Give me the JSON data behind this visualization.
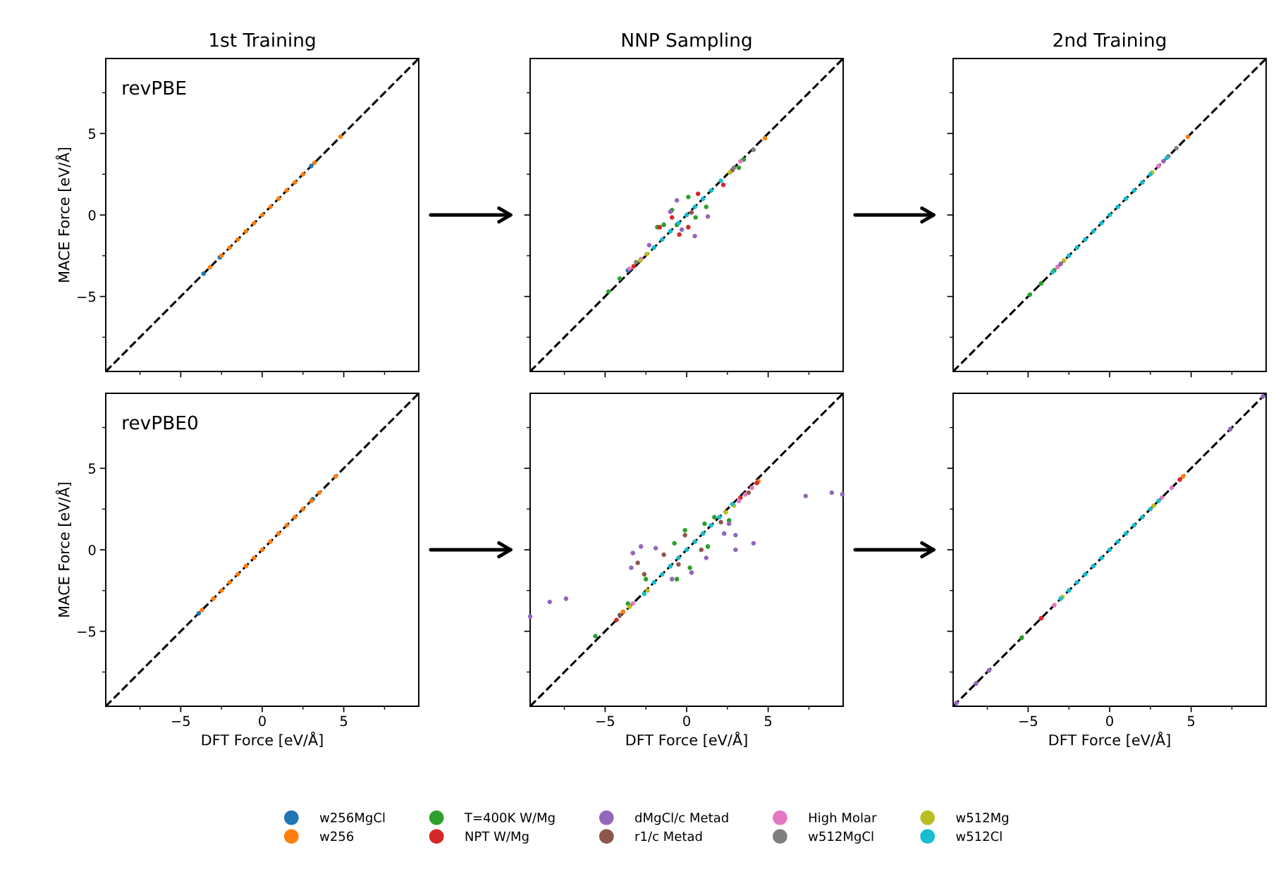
{
  "chart_data": [
    {
      "type": "scatter",
      "title": "1st Training",
      "ylabel": "MACE Force [eV/Å]",
      "annotations": [
        "revPBE"
      ],
      "marker": "circle",
      "tick_labels": "y",
      "xlim": [
        -9.6,
        9.6
      ],
      "ylim": [
        -9.6,
        9.6
      ],
      "xticks": [
        {
          "value": -7.5,
          "label": null
        },
        {
          "value": -5,
          "label": null
        },
        {
          "value": -2.5,
          "label": null
        },
        {
          "value": 0,
          "label": null
        },
        {
          "value": 2.5,
          "label": null
        },
        {
          "value": 5,
          "label": null
        },
        {
          "value": 7.5,
          "label": null
        }
      ],
      "yticks": [
        {
          "value": -7.5,
          "label": null
        },
        {
          "value": -5,
          "label": "−5"
        },
        {
          "value": -2.5,
          "label": null
        },
        0,
        {
          "value": 2.5,
          "label": null
        },
        5,
        {
          "value": 7.5,
          "label": null
        }
      ],
      "series": [
        {
          "type": "line",
          "marker": "none",
          "line_style": "dashed",
          "color": "#000000",
          "x": [
            -9.6,
            9.6
          ],
          "values": [
            -9.6,
            9.6
          ]
        },
        {
          "color": "#1f77b4",
          "x": [
            -3.6,
            -2.6,
            3.0
          ],
          "values": [
            -3.6,
            -2.6,
            3.0
          ]
        },
        {
          "color": "#ff7f0e",
          "x": [
            -3.2,
            -2.5,
            -2.0,
            -1.5,
            -1.0,
            -0.5,
            0.0,
            0.5,
            1.0,
            1.5,
            2.0,
            2.5,
            3.2,
            4.8
          ],
          "values": [
            -3.2,
            -2.5,
            -2.0,
            -1.5,
            -1.0,
            -0.5,
            0.0,
            0.5,
            1.0,
            1.5,
            2.0,
            2.5,
            3.2,
            4.8
          ]
        }
      ]
    },
    {
      "type": "scatter",
      "title": "NNP Sampling",
      "marker": "circle",
      "tick_labels": false,
      "legend": "bottom",
      "xlim": [
        -9.6,
        9.6
      ],
      "ylim": [
        -9.6,
        9.6
      ],
      "xticks": [
        {
          "value": -7.5,
          "label": null
        },
        {
          "value": -5,
          "label": null
        },
        {
          "value": -2.5,
          "label": null
        },
        {
          "value": 0,
          "label": null
        },
        {
          "value": 2.5,
          "label": null
        },
        {
          "value": 5,
          "label": null
        },
        {
          "value": 7.5,
          "label": null
        }
      ],
      "yticks": [
        {
          "value": -7.5,
          "label": null
        },
        {
          "value": -5,
          "label": null
        },
        {
          "value": -2.5,
          "label": null
        },
        {
          "value": 0,
          "label": null
        },
        {
          "value": 2.5,
          "label": null
        },
        {
          "value": 5,
          "label": null
        },
        {
          "value": 7.5,
          "label": null
        }
      ],
      "series": [
        {
          "type": "line",
          "marker": "none",
          "line_style": "dashed",
          "color": "#000000",
          "x": [
            -9.6,
            9.6
          ],
          "values": [
            -9.6,
            9.6
          ]
        },
        {
          "name": "w256MgCl",
          "color": "#1f77b4",
          "x": [
            -3.6
          ],
          "values": [
            -3.4
          ]
        },
        {
          "name": "w256",
          "color": "#ff7f0e",
          "x": [
            4.8
          ],
          "values": [
            4.7
          ]
        },
        {
          "name": "T=400K W/Mg",
          "color": "#2ca02c",
          "x": [
            -4.8,
            -4.1,
            3.5,
            0.1,
            -1.8,
            -1.4,
            -0.9,
            1.2,
            0.55,
            -0.6,
            3.2
          ],
          "values": [
            -4.7,
            -3.9,
            3.4,
            1.1,
            -0.75,
            -0.6,
            0.3,
            0.5,
            -0.15,
            -0.6,
            2.9
          ]
        },
        {
          "name": "NPT W/Mg",
          "color": "#d62728",
          "x": [
            -3.25,
            -1.65,
            -0.45,
            0.7,
            0.1,
            2.25,
            -0.9
          ],
          "values": [
            -3.15,
            -0.75,
            -1.2,
            1.3,
            -0.75,
            1.85,
            -0.15
          ]
        },
        {
          "name": "dMgCl/c Metad",
          "color": "#9467bd",
          "x": [
            -0.6,
            0.5,
            1.3,
            -1.0,
            -2.3,
            -0.3
          ],
          "values": [
            0.9,
            -1.3,
            -0.1,
            0.2,
            -1.85,
            -0.9
          ]
        },
        {
          "name": "r1/c Metad",
          "color": "#8c564b",
          "x": [
            2.8,
            0.3
          ],
          "values": [
            2.75,
            0.15
          ]
        },
        {
          "name": "High Molar",
          "color": "#e377c2",
          "x": [
            -3.5,
            3.3,
            -2.8
          ],
          "values": [
            -3.3,
            3.3,
            -2.7
          ]
        },
        {
          "name": "w512MgCl",
          "color": "#7f7f7f",
          "x": [
            4.1,
            -3.1,
            2.9
          ],
          "values": [
            4.0,
            -2.9,
            2.9
          ]
        },
        {
          "name": "w512Mg",
          "color": "#bcbd22",
          "x": [
            -2.85,
            2.65,
            -2.45
          ],
          "values": [
            -2.8,
            2.6,
            -2.4
          ]
        },
        {
          "name": "w512Cl",
          "color": "#17becf",
          "x": [
            -2.0,
            -1.5,
            -1.0,
            -0.5,
            0.0,
            0.5,
            1.0,
            1.5,
            2.1
          ],
          "values": [
            -2.0,
            -1.5,
            -1.0,
            -0.5,
            0.0,
            0.5,
            1.0,
            1.5,
            2.1
          ]
        }
      ]
    },
    {
      "type": "scatter",
      "title": "2nd Training",
      "marker": "circle",
      "tick_labels": false,
      "xlim": [
        -9.6,
        9.6
      ],
      "ylim": [
        -9.6,
        9.6
      ],
      "xticks": [
        {
          "value": -7.5,
          "label": null
        },
        {
          "value": -5,
          "label": null
        },
        {
          "value": -2.5,
          "label": null
        },
        {
          "value": 0,
          "label": null
        },
        {
          "value": 2.5,
          "label": null
        },
        {
          "value": 5,
          "label": null
        },
        {
          "value": 7.5,
          "label": null
        }
      ],
      "yticks": [
        {
          "value": -7.5,
          "label": null
        },
        {
          "value": -5,
          "label": null
        },
        {
          "value": -2.5,
          "label": null
        },
        {
          "value": 0,
          "label": null
        },
        {
          "value": 2.5,
          "label": null
        },
        {
          "value": 5,
          "label": null
        },
        {
          "value": 7.5,
          "label": null
        }
      ],
      "series": [
        {
          "type": "line",
          "marker": "none",
          "line_style": "dashed",
          "color": "#000000",
          "x": [
            -9.6,
            9.6
          ],
          "values": [
            -9.6,
            9.6
          ]
        },
        {
          "color": "#ff7f0e",
          "x": [
            4.8
          ],
          "values": [
            4.8
          ]
        },
        {
          "color": "#2ca02c",
          "x": [
            -4.9,
            -4.2,
            -3.4
          ],
          "values": [
            -4.9,
            -4.2,
            -3.4
          ]
        },
        {
          "color": "#9467bd",
          "x": [
            -3.0,
            3.3
          ],
          "values": [
            -3.0,
            3.3
          ]
        },
        {
          "color": "#e377c2",
          "x": [
            -3.2,
            3.0
          ],
          "values": [
            -3.2,
            3.0
          ]
        },
        {
          "color": "#7f7f7f",
          "x": [
            4.1,
            3.6
          ],
          "values": [
            4.1,
            3.6
          ]
        },
        {
          "color": "#bcbd22",
          "x": [
            -2.8,
            2.6
          ],
          "values": [
            -2.8,
            2.6
          ]
        },
        {
          "color": "#17becf",
          "x": [
            -3.5,
            -2.5,
            -2.0,
            -1.5,
            -1.0,
            -0.5,
            0.0,
            0.5,
            1.0,
            1.5,
            2.0,
            2.5,
            3.5
          ],
          "values": [
            -3.5,
            -2.5,
            -2.0,
            -1.5,
            -1.0,
            -0.5,
            0.0,
            0.5,
            1.0,
            1.5,
            2.0,
            2.5,
            3.5
          ]
        }
      ]
    },
    {
      "type": "scatter",
      "xlabel": "DFT Force [eV/Å]",
      "ylabel": "MACE Force [eV/Å]",
      "annotations": [
        "revPBE0"
      ],
      "marker": "circle",
      "xlim": [
        -9.6,
        9.6
      ],
      "ylim": [
        -9.6,
        9.6
      ],
      "xticks": [
        {
          "value": -7.5,
          "label": null
        },
        {
          "value": -5,
          "label": "−5"
        },
        {
          "value": -2.5,
          "label": null
        },
        0,
        {
          "value": 2.5,
          "label": null
        },
        5,
        {
          "value": 7.5,
          "label": null
        }
      ],
      "yticks": [
        {
          "value": -7.5,
          "label": null
        },
        {
          "value": -5,
          "label": "−5"
        },
        {
          "value": -2.5,
          "label": null
        },
        0,
        {
          "value": 2.5,
          "label": null
        },
        5,
        {
          "value": 7.5,
          "label": null
        }
      ],
      "series": [
        {
          "type": "line",
          "marker": "none",
          "line_style": "dashed",
          "color": "#000000",
          "x": [
            -9.6,
            9.6
          ],
          "values": [
            -9.6,
            9.6
          ]
        },
        {
          "color": "#1f77b4",
          "x": [
            -3.9,
            3.1
          ],
          "values": [
            -3.9,
            3.1
          ]
        },
        {
          "color": "#ff7f0e",
          "x": [
            -3.7,
            -3.0,
            -2.5,
            -2.0,
            -1.5,
            -1.0,
            -0.5,
            0.0,
            0.5,
            1.0,
            1.5,
            2.0,
            2.5,
            3.0,
            3.5,
            4.5
          ],
          "values": [
            -3.7,
            -3.0,
            -2.5,
            -2.0,
            -1.5,
            -1.0,
            -0.5,
            0.0,
            0.5,
            1.0,
            1.5,
            2.0,
            2.5,
            3.0,
            3.5,
            4.5
          ]
        }
      ]
    },
    {
      "type": "scatter",
      "xlabel": "DFT Force [eV/Å]",
      "marker": "circle",
      "tick_labels": "x",
      "xlim": [
        -9.6,
        9.6
      ],
      "ylim": [
        -9.6,
        9.6
      ],
      "xticks": [
        {
          "value": -7.5,
          "label": null
        },
        {
          "value": -5,
          "label": "−5"
        },
        {
          "value": -2.5,
          "label": null
        },
        0,
        {
          "value": 2.5,
          "label": null
        },
        5,
        {
          "value": 7.5,
          "label": null
        }
      ],
      "yticks": [
        {
          "value": -7.5,
          "label": null
        },
        {
          "value": -5,
          "label": null
        },
        {
          "value": -2.5,
          "label": null
        },
        {
          "value": 0,
          "label": null
        },
        {
          "value": 2.5,
          "label": null
        },
        {
          "value": 5,
          "label": null
        },
        {
          "value": 7.5,
          "label": null
        }
      ],
      "series": [
        {
          "type": "line",
          "marker": "none",
          "line_style": "dashed",
          "color": "#000000",
          "x": [
            -9.6,
            9.6
          ],
          "values": [
            -9.6,
            9.6
          ]
        },
        {
          "color": "#ff7f0e",
          "x": [
            4.4,
            -3.9
          ],
          "values": [
            4.2,
            -3.8
          ]
        },
        {
          "color": "#2ca02c",
          "x": [
            -5.6,
            -0.6,
            1.7,
            1.1,
            1.3,
            2.6,
            -2.5,
            -3.6,
            0.2,
            -0.75,
            -0.1
          ],
          "values": [
            -5.3,
            -1.8,
            2.0,
            1.6,
            0.2,
            1.8,
            -1.8,
            -3.3,
            -1.1,
            0.4,
            1.2
          ]
        },
        {
          "color": "#d62728",
          "x": [
            -4.3,
            4.3,
            3.3
          ],
          "values": [
            -4.3,
            4.1,
            3.2
          ]
        },
        {
          "color": "#9467bd",
          "x": [
            7.3,
            8.9,
            9.55,
            -9.6,
            -8.4,
            -7.4,
            4.1,
            3.0,
            3.0,
            2.3,
            2.6,
            -2.8,
            -3.3,
            -1.9,
            -3.4,
            0.3,
            -0.9,
            1.2
          ],
          "values": [
            3.3,
            3.5,
            3.4,
            -4.1,
            -3.2,
            -3.0,
            0.4,
            0.0,
            0.9,
            1.0,
            1.6,
            0.2,
            -0.2,
            0.1,
            -1.1,
            -1.4,
            -1.8,
            -0.5
          ]
        },
        {
          "color": "#8c564b",
          "x": [
            -3.0,
            -2.6,
            -0.1,
            3.8,
            2.1,
            -1.4,
            0.9,
            -0.5,
            -4.1
          ],
          "values": [
            -0.8,
            -1.5,
            0.9,
            3.5,
            1.7,
            -0.3,
            0.0,
            -0.9,
            -4.0
          ]
        },
        {
          "color": "#e377c2",
          "x": [
            4.0,
            3.2,
            -3.3,
            3.6
          ],
          "values": [
            3.8,
            3.0,
            -3.3,
            3.4
          ]
        },
        {
          "color": "#bcbd22",
          "x": [
            -3.5,
            2.9,
            2.4,
            -2.4
          ],
          "values": [
            -3.5,
            2.7,
            2.3,
            -2.5
          ]
        },
        {
          "color": "#17becf",
          "x": [
            -2.6,
            -2.0,
            -1.5,
            -1.0,
            -0.5,
            0.0,
            0.5,
            1.0,
            1.5,
            2.0,
            2.8
          ],
          "values": [
            -2.7,
            -2.0,
            -1.5,
            -1.0,
            -0.5,
            0.0,
            0.5,
            1.0,
            1.5,
            2.0,
            2.8
          ]
        }
      ]
    },
    {
      "type": "scatter",
      "xlabel": "DFT Force [eV/Å]",
      "marker": "circle",
      "tick_labels": "x",
      "xlim": [
        -9.6,
        9.6
      ],
      "ylim": [
        -9.6,
        9.6
      ],
      "xticks": [
        {
          "value": -7.5,
          "label": null
        },
        {
          "value": -5,
          "label": "−5"
        },
        {
          "value": -2.5,
          "label": null
        },
        0,
        {
          "value": 2.5,
          "label": null
        },
        5,
        {
          "value": 7.5,
          "label": null
        }
      ],
      "yticks": [
        {
          "value": -7.5,
          "label": null
        },
        {
          "value": -5,
          "label": null
        },
        {
          "value": -2.5,
          "label": null
        },
        {
          "value": 0,
          "label": null
        },
        {
          "value": 2.5,
          "label": null
        },
        {
          "value": 5,
          "label": null
        },
        {
          "value": 7.5,
          "label": null
        }
      ],
      "series": [
        {
          "type": "line",
          "marker": "none",
          "line_style": "dashed",
          "color": "#000000",
          "x": [
            -9.6,
            9.6
          ],
          "values": [
            -9.6,
            9.6
          ]
        },
        {
          "color": "#ff7f0e",
          "x": [
            4.5
          ],
          "values": [
            4.5
          ]
        },
        {
          "color": "#2ca02c",
          "x": [
            -5.4
          ],
          "values": [
            -5.4
          ]
        },
        {
          "color": "#d62728",
          "x": [
            -4.2,
            4.3
          ],
          "values": [
            -4.2,
            4.3
          ]
        },
        {
          "color": "#9467bd",
          "x": [
            -9.4,
            -8.2,
            -7.4,
            7.4,
            9.4
          ],
          "values": [
            -9.4,
            -8.2,
            -7.4,
            7.4,
            9.4
          ]
        },
        {
          "color": "#e377c2",
          "x": [
            -3.4,
            3.2,
            3.8
          ],
          "values": [
            -3.4,
            3.2,
            3.8
          ]
        },
        {
          "color": "#bcbd22",
          "x": [
            -2.9,
            2.7
          ],
          "values": [
            -2.9,
            2.7
          ]
        },
        {
          "color": "#17becf",
          "x": [
            -3.0,
            -2.5,
            -2.0,
            -1.5,
            -1.0,
            -0.5,
            0.0,
            0.5,
            1.0,
            1.5,
            2.0,
            2.5,
            3.0
          ],
          "values": [
            -3.0,
            -2.5,
            -2.0,
            -1.5,
            -1.0,
            -0.5,
            0.0,
            0.5,
            1.0,
            1.5,
            2.0,
            2.5,
            3.0
          ]
        }
      ]
    }
  ]
}
